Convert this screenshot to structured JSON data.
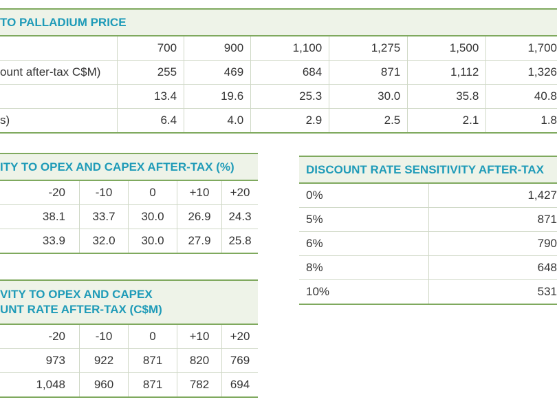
{
  "t1": {
    "title": "TO PALLADIUM PRICE",
    "rows": [
      {
        "label": "",
        "values": [
          "700",
          "900",
          "1,100",
          "1,275",
          "1,500",
          "1,700"
        ]
      },
      {
        "label": "ount after-tax C$M)",
        "values": [
          "255",
          "469",
          "684",
          "871",
          "1,112",
          "1,326"
        ]
      },
      {
        "label": "",
        "values": [
          "13.4",
          "19.6",
          "25.3",
          "30.0",
          "35.8",
          "40.8"
        ]
      },
      {
        "label": "s)",
        "values": [
          "6.4",
          "4.0",
          "2.9",
          "2.5",
          "2.1",
          "1.8"
        ]
      }
    ]
  },
  "t2": {
    "title": "ITY TO OPEX AND CAPEX AFTER-TAX (%)",
    "rows": [
      [
        "-20",
        "-10",
        "0",
        "+10",
        "+20"
      ],
      [
        "38.1",
        "33.7",
        "30.0",
        "26.9",
        "24.3"
      ],
      [
        "33.9",
        "32.0",
        "30.0",
        "27.9",
        "25.8"
      ]
    ]
  },
  "t3": {
    "title_line1": "VITY TO OPEX AND CAPEX",
    "title_line2": "UNT RATE AFTER-TAX (C$M)",
    "rows": [
      [
        "-20",
        "-10",
        "0",
        "+10",
        "+20"
      ],
      [
        "973",
        "922",
        "871",
        "820",
        "769"
      ],
      [
        "1,048",
        "960",
        "871",
        "782",
        "694"
      ]
    ]
  },
  "t4": {
    "title": "DISCOUNT RATE SENSITIVITY AFTER-TAX",
    "rows": [
      {
        "rate": "0%",
        "value": "1,427"
      },
      {
        "rate": "5%",
        "value": "871"
      },
      {
        "rate": "6%",
        "value": "790"
      },
      {
        "rate": "8%",
        "value": "648"
      },
      {
        "rate": "10%",
        "value": "531"
      }
    ]
  }
}
